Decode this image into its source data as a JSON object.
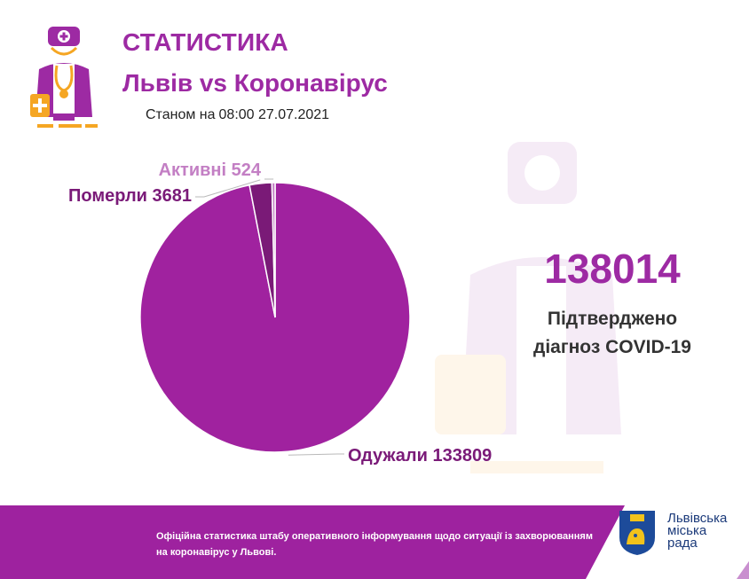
{
  "header": {
    "title": "СТАТИСТИКА",
    "subtitle": "Львів vs Коронавірус",
    "as_of_prefix": "Станом на",
    "as_of_date": "08:00 27.07.2021"
  },
  "summary": {
    "total": "138014",
    "description_line1": "Підтверджено",
    "description_line2": "діагноз COVID-19"
  },
  "chart_data": {
    "type": "pie",
    "categories": [
      "Одужали",
      "Померли",
      "Активні"
    ],
    "values": [
      133809,
      3681,
      524
    ],
    "labels": [
      "Одужали 133809",
      "Померли 3681",
      "Активні 524"
    ],
    "colors": [
      "#a0229f",
      "#7a1a77",
      "#c37fc4"
    ],
    "label_colors": [
      "#7a1a78",
      "#7a1a78",
      "#c37fc4"
    ],
    "title": "",
    "legend": "none"
  },
  "footer": {
    "text": "Офіційна статистика штабу оперативного інформування щодо ситуації із захворюванням на коронавірус у Львові.",
    "org_line1": "Львівська",
    "org_line2": "міська",
    "org_line3": "рада"
  },
  "colors": {
    "accent": "#9d2aa3",
    "footer_bg": "#9e229f",
    "org_text": "#1b3a7a"
  },
  "icons": {
    "logo": "doctor-icon",
    "watermark": "doctor-watermark-icon",
    "coat": "coat-of-arms-icon"
  }
}
